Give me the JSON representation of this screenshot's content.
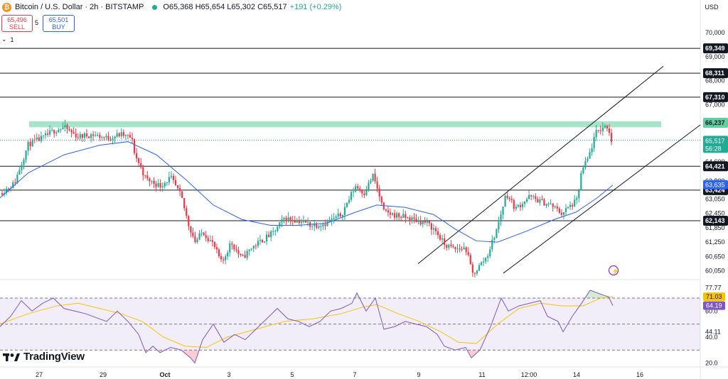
{
  "header": {
    "symbol_title": "Bitcoin / U.S. Dollar · 2h · BITSTAMP",
    "ohlc": "O65,368 H65,654 L65,302 C65,517",
    "change": "+191 (+0.29%)",
    "logo_glyph": "₿",
    "currency": "USD"
  },
  "trade": {
    "sell_price": "65,496",
    "sell_label": "SELL",
    "spread": "5",
    "buy_price": "65,501",
    "buy_label": "BUY",
    "indicator_count": "1"
  },
  "branding": {
    "name": "TradingView"
  },
  "colors": {
    "up": "#22ab94",
    "down": "#f23645",
    "ma": "#2962ff",
    "rsi": "#7e57c2",
    "rsi_ma": "#f7c400",
    "zone": "#5fd0a0",
    "channel": "#131722"
  },
  "chart_data": [
    {
      "type": "candlestick",
      "symbol": "BTC/USD",
      "interval": "2h",
      "ylim": [
        59800,
        70600
      ],
      "y_ticks": [
        60050,
        60650,
        61250,
        61850,
        62450,
        63050,
        63800,
        64600,
        67000,
        68000,
        69000,
        70000
      ],
      "x_tick_labels": [
        "27",
        "29",
        "Oct",
        "3",
        "5",
        "7",
        "9",
        "11",
        "12:00",
        "14",
        "16"
      ],
      "price_lines": [
        69349,
        68311,
        67310,
        64421,
        63424,
        62143
      ],
      "price_line_labels": [
        "69,349",
        "68,311",
        "67,310",
        "64,421",
        "63,424",
        "62,143"
      ],
      "resistance_zone": {
        "label": "66,237",
        "low": 66050,
        "high": 66300
      },
      "last_price": {
        "value": 65517,
        "label": "65,517",
        "countdown": "56:28"
      },
      "ma_last": {
        "value": 63635,
        "label": "63,635"
      },
      "key_prices": [
        [
          0,
          63300
        ],
        [
          20,
          63700
        ],
        [
          40,
          65350
        ],
        [
          60,
          65600
        ],
        [
          75,
          65900
        ],
        [
          90,
          66050
        ],
        [
          110,
          65650
        ],
        [
          130,
          65750
        ],
        [
          150,
          65600
        ],
        [
          170,
          65750
        ],
        [
          185,
          65600
        ],
        [
          190,
          64900
        ],
        [
          205,
          63900
        ],
        [
          225,
          63600
        ],
        [
          240,
          63950
        ],
        [
          255,
          63150
        ],
        [
          265,
          62000
        ],
        [
          275,
          61250
        ],
        [
          285,
          61700
        ],
        [
          300,
          61150
        ],
        [
          312,
          60350
        ],
        [
          325,
          61250
        ],
        [
          340,
          60550
        ],
        [
          355,
          61050
        ],
        [
          370,
          61350
        ],
        [
          385,
          61650
        ],
        [
          400,
          62250
        ],
        [
          420,
          62150
        ],
        [
          440,
          61950
        ],
        [
          460,
          62050
        ],
        [
          480,
          62400
        ],
        [
          500,
          63600
        ],
        [
          512,
          63300
        ],
        [
          525,
          64050
        ],
        [
          540,
          62500
        ],
        [
          560,
          62350
        ],
        [
          580,
          62200
        ],
        [
          600,
          62050
        ],
        [
          612,
          61750
        ],
        [
          625,
          61150
        ],
        [
          640,
          60950
        ],
        [
          655,
          61000
        ],
        [
          665,
          59900
        ],
        [
          685,
          60650
        ],
        [
          700,
          61900
        ],
        [
          712,
          63300
        ],
        [
          725,
          62650
        ],
        [
          745,
          63150
        ],
        [
          760,
          62950
        ],
        [
          775,
          62800
        ],
        [
          790,
          62450
        ],
        [
          800,
          62700
        ],
        [
          812,
          63000
        ],
        [
          818,
          64200
        ],
        [
          828,
          64800
        ],
        [
          838,
          65800
        ],
        [
          848,
          66050
        ],
        [
          855,
          66100
        ],
        [
          860,
          65500
        ]
      ],
      "ma_points": [
        [
          0,
          63100
        ],
        [
          40,
          64150
        ],
        [
          90,
          64900
        ],
        [
          140,
          65300
        ],
        [
          180,
          65450
        ],
        [
          220,
          64900
        ],
        [
          260,
          63900
        ],
        [
          300,
          62800
        ],
        [
          340,
          62200
        ],
        [
          380,
          61950
        ],
        [
          420,
          61950
        ],
        [
          460,
          62050
        ],
        [
          500,
          62500
        ],
        [
          530,
          62800
        ],
        [
          570,
          62700
        ],
        [
          610,
          62400
        ],
        [
          640,
          61800
        ],
        [
          670,
          61300
        ],
        [
          700,
          61250
        ],
        [
          740,
          61700
        ],
        [
          780,
          62200
        ],
        [
          810,
          62500
        ],
        [
          840,
          63100
        ],
        [
          862,
          63635
        ]
      ],
      "channel": {
        "upper": [
          [
            588,
            60350
          ],
          [
            933,
            68600
          ]
        ],
        "lower": [
          [
            708,
            59950
          ],
          [
            985,
            66150
          ]
        ]
      }
    },
    {
      "type": "line",
      "indicator": "RSI",
      "ylim": [
        17,
        82
      ],
      "y_ticks": [
        20.0,
        40.0,
        44.11,
        60.0,
        77.77
      ],
      "bands": [
        30,
        50,
        70
      ],
      "last_values": [
        {
          "name": "RSI",
          "value": 64.19,
          "label": "64.19"
        },
        {
          "name": "RSI MA",
          "value": 71.03,
          "label": "71.03"
        }
      ],
      "rsi_points": [
        [
          0,
          48
        ],
        [
          15,
          56
        ],
        [
          30,
          68
        ],
        [
          45,
          60
        ],
        [
          60,
          66
        ],
        [
          75,
          70
        ],
        [
          90,
          62
        ],
        [
          105,
          60
        ],
        [
          120,
          58
        ],
        [
          135,
          55
        ],
        [
          150,
          52
        ],
        [
          165,
          60
        ],
        [
          180,
          52
        ],
        [
          195,
          42
        ],
        [
          205,
          28
        ],
        [
          215,
          33
        ],
        [
          225,
          28
        ],
        [
          240,
          32
        ],
        [
          255,
          30
        ],
        [
          268,
          24
        ],
        [
          274,
          20
        ],
        [
          285,
          38
        ],
        [
          300,
          50
        ],
        [
          315,
          36
        ],
        [
          330,
          42
        ],
        [
          345,
          38
        ],
        [
          360,
          46
        ],
        [
          375,
          54
        ],
        [
          390,
          62
        ],
        [
          405,
          54
        ],
        [
          420,
          52
        ],
        [
          435,
          48
        ],
        [
          450,
          52
        ],
        [
          465,
          60
        ],
        [
          480,
          62
        ],
        [
          495,
          66
        ],
        [
          502,
          74
        ],
        [
          515,
          60
        ],
        [
          528,
          70
        ],
        [
          540,
          46
        ],
        [
          555,
          48
        ],
        [
          570,
          52
        ],
        [
          585,
          50
        ],
        [
          600,
          48
        ],
        [
          615,
          42
        ],
        [
          625,
          33
        ],
        [
          640,
          30
        ],
        [
          655,
          32
        ],
        [
          663,
          24
        ],
        [
          675,
          30
        ],
        [
          690,
          48
        ],
        [
          705,
          70
        ],
        [
          715,
          60
        ],
        [
          730,
          64
        ],
        [
          745,
          66
        ],
        [
          760,
          68
        ],
        [
          770,
          56
        ],
        [
          785,
          52
        ],
        [
          792,
          44
        ],
        [
          805,
          56
        ],
        [
          818,
          66
        ],
        [
          830,
          76
        ],
        [
          840,
          74
        ],
        [
          850,
          72
        ],
        [
          856,
          71
        ],
        [
          862,
          64.19
        ]
      ],
      "rsi_ma_points": [
        [
          0,
          50
        ],
        [
          40,
          58
        ],
        [
          80,
          64
        ],
        [
          110,
          66
        ],
        [
          140,
          62
        ],
        [
          170,
          58
        ],
        [
          200,
          52
        ],
        [
          230,
          40
        ],
        [
          260,
          33
        ],
        [
          290,
          32
        ],
        [
          320,
          40
        ],
        [
          360,
          46
        ],
        [
          400,
          52
        ],
        [
          440,
          54
        ],
        [
          480,
          58
        ],
        [
          510,
          63
        ],
        [
          530,
          65
        ],
        [
          560,
          58
        ],
        [
          590,
          52
        ],
        [
          620,
          44
        ],
        [
          645,
          36
        ],
        [
          670,
          35
        ],
        [
          700,
          50
        ],
        [
          730,
          62
        ],
        [
          760,
          66
        ],
        [
          790,
          64
        ],
        [
          820,
          64
        ],
        [
          845,
          70
        ],
        [
          862,
          71.03
        ]
      ]
    }
  ]
}
